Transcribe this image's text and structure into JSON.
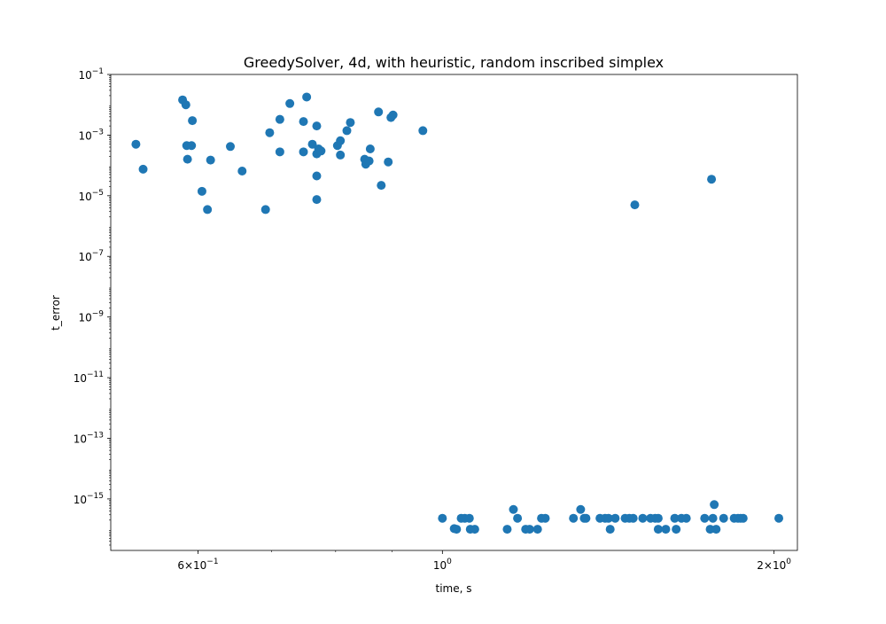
{
  "chart_data": {
    "type": "scatter",
    "title": "GreedySolver, 4d, with heuristic, random inscribed simplex",
    "xlabel": "time, s",
    "ylabel": "t_error",
    "xscale": "log",
    "yscale": "log",
    "xlim": [
      0.5,
      2.1
    ],
    "ylim": [
      2e-17,
      0.1
    ],
    "grid": false,
    "marker_color": "#1f77b4",
    "x_ticks": [
      {
        "value": 0.6,
        "base": "6",
        "mult": "×10",
        "exp": "−1"
      },
      {
        "value": 1.0,
        "base": "10",
        "mult": "",
        "exp": "0"
      },
      {
        "value": 2.0,
        "base": "2",
        "mult": "×10",
        "exp": "0"
      }
    ],
    "y_ticks": [
      {
        "value": 0.1,
        "base": "10",
        "exp": "−1"
      },
      {
        "value": 0.001,
        "base": "10",
        "exp": "−3"
      },
      {
        "value": 1e-05,
        "base": "10",
        "exp": "−5"
      },
      {
        "value": 1e-07,
        "base": "10",
        "exp": "−7"
      },
      {
        "value": 1e-09,
        "base": "10",
        "exp": "−9"
      },
      {
        "value": 1e-11,
        "base": "10",
        "exp": "−11"
      },
      {
        "value": 1e-13,
        "base": "10",
        "exp": "−13"
      },
      {
        "value": 1e-15,
        "base": "10",
        "exp": "−15"
      }
    ],
    "series": [
      {
        "points": [
          [
            0.527,
            0.0005
          ],
          [
            0.535,
            7.5e-05
          ],
          [
            0.581,
            0.0145
          ],
          [
            0.585,
            0.01
          ],
          [
            0.586,
            0.00045
          ],
          [
            0.587,
            0.00016
          ],
          [
            0.592,
            0.00045
          ],
          [
            0.593,
            0.003
          ],
          [
            0.605,
            1.4e-05
          ],
          [
            0.612,
            3.5e-06
          ],
          [
            0.616,
            0.00015
          ],
          [
            0.642,
            0.00042
          ],
          [
            0.658,
            6.5e-05
          ],
          [
            0.691,
            3.5e-06
          ],
          [
            0.697,
            0.0012
          ],
          [
            0.712,
            0.0033
          ],
          [
            0.712,
            0.00028
          ],
          [
            0.727,
            0.011
          ],
          [
            0.748,
            0.0028
          ],
          [
            0.748,
            0.00028
          ],
          [
            0.753,
            0.018
          ],
          [
            0.762,
            0.0005
          ],
          [
            0.769,
            0.002
          ],
          [
            0.769,
            4.5e-05
          ],
          [
            0.769,
            7.5e-06
          ],
          [
            0.769,
            0.00024
          ],
          [
            0.772,
            0.00035
          ],
          [
            0.776,
            0.0003
          ],
          [
            0.803,
            0.00045
          ],
          [
            0.808,
            0.00065
          ],
          [
            0.808,
            0.00022
          ],
          [
            0.819,
            0.0014
          ],
          [
            0.825,
            0.0026
          ],
          [
            0.85,
            0.00016
          ],
          [
            0.852,
            0.00011
          ],
          [
            0.858,
            0.00014
          ],
          [
            0.86,
            0.00035
          ],
          [
            0.875,
            0.0058
          ],
          [
            0.88,
            2.2e-05
          ],
          [
            0.893,
            0.00013
          ],
          [
            0.898,
            0.0038
          ],
          [
            0.902,
            0.0046
          ],
          [
            0.96,
            0.0014
          ],
          [
            1.495,
            5e-06
          ],
          [
            1.755,
            3.5e-05
          ],
          [
            1.0,
            2.3e-16
          ],
          [
            1.025,
            1.05e-16
          ],
          [
            1.03,
            1e-16
          ],
          [
            1.04,
            2.3e-16
          ],
          [
            1.048,
            2.3e-16
          ],
          [
            1.058,
            2.3e-16
          ],
          [
            1.06,
            1e-16
          ],
          [
            1.07,
            1e-16
          ],
          [
            1.145,
            1e-16
          ],
          [
            1.16,
            4.5e-16
          ],
          [
            1.17,
            2.3e-16
          ],
          [
            1.19,
            1e-16
          ],
          [
            1.2,
            1e-16
          ],
          [
            1.22,
            1e-16
          ],
          [
            1.23,
            2.3e-16
          ],
          [
            1.24,
            2.3e-16
          ],
          [
            1.315,
            2.3e-16
          ],
          [
            1.335,
            4.5e-16
          ],
          [
            1.345,
            2.3e-16
          ],
          [
            1.35,
            2.3e-16
          ],
          [
            1.39,
            2.3e-16
          ],
          [
            1.405,
            2.3e-16
          ],
          [
            1.415,
            2.3e-16
          ],
          [
            1.42,
            1e-16
          ],
          [
            1.435,
            2.3e-16
          ],
          [
            1.465,
            2.3e-16
          ],
          [
            1.478,
            2.3e-16
          ],
          [
            1.49,
            2.3e-16
          ],
          [
            1.52,
            2.3e-16
          ],
          [
            1.545,
            2.3e-16
          ],
          [
            1.56,
            2.3e-16
          ],
          [
            1.57,
            2.3e-16
          ],
          [
            1.57,
            1e-16
          ],
          [
            1.595,
            1e-16
          ],
          [
            1.625,
            2.3e-16
          ],
          [
            1.63,
            1e-16
          ],
          [
            1.648,
            2.3e-16
          ],
          [
            1.665,
            2.3e-16
          ],
          [
            1.73,
            2.3e-16
          ],
          [
            1.75,
            1e-16
          ],
          [
            1.76,
            2.3e-16
          ],
          [
            1.765,
            6.5e-16
          ],
          [
            1.772,
            1e-16
          ],
          [
            1.8,
            2.3e-16
          ],
          [
            1.84,
            2.3e-16
          ],
          [
            1.855,
            2.3e-16
          ],
          [
            1.865,
            2.3e-16
          ],
          [
            1.875,
            2.3e-16
          ],
          [
            2.02,
            2.3e-16
          ]
        ]
      }
    ]
  }
}
